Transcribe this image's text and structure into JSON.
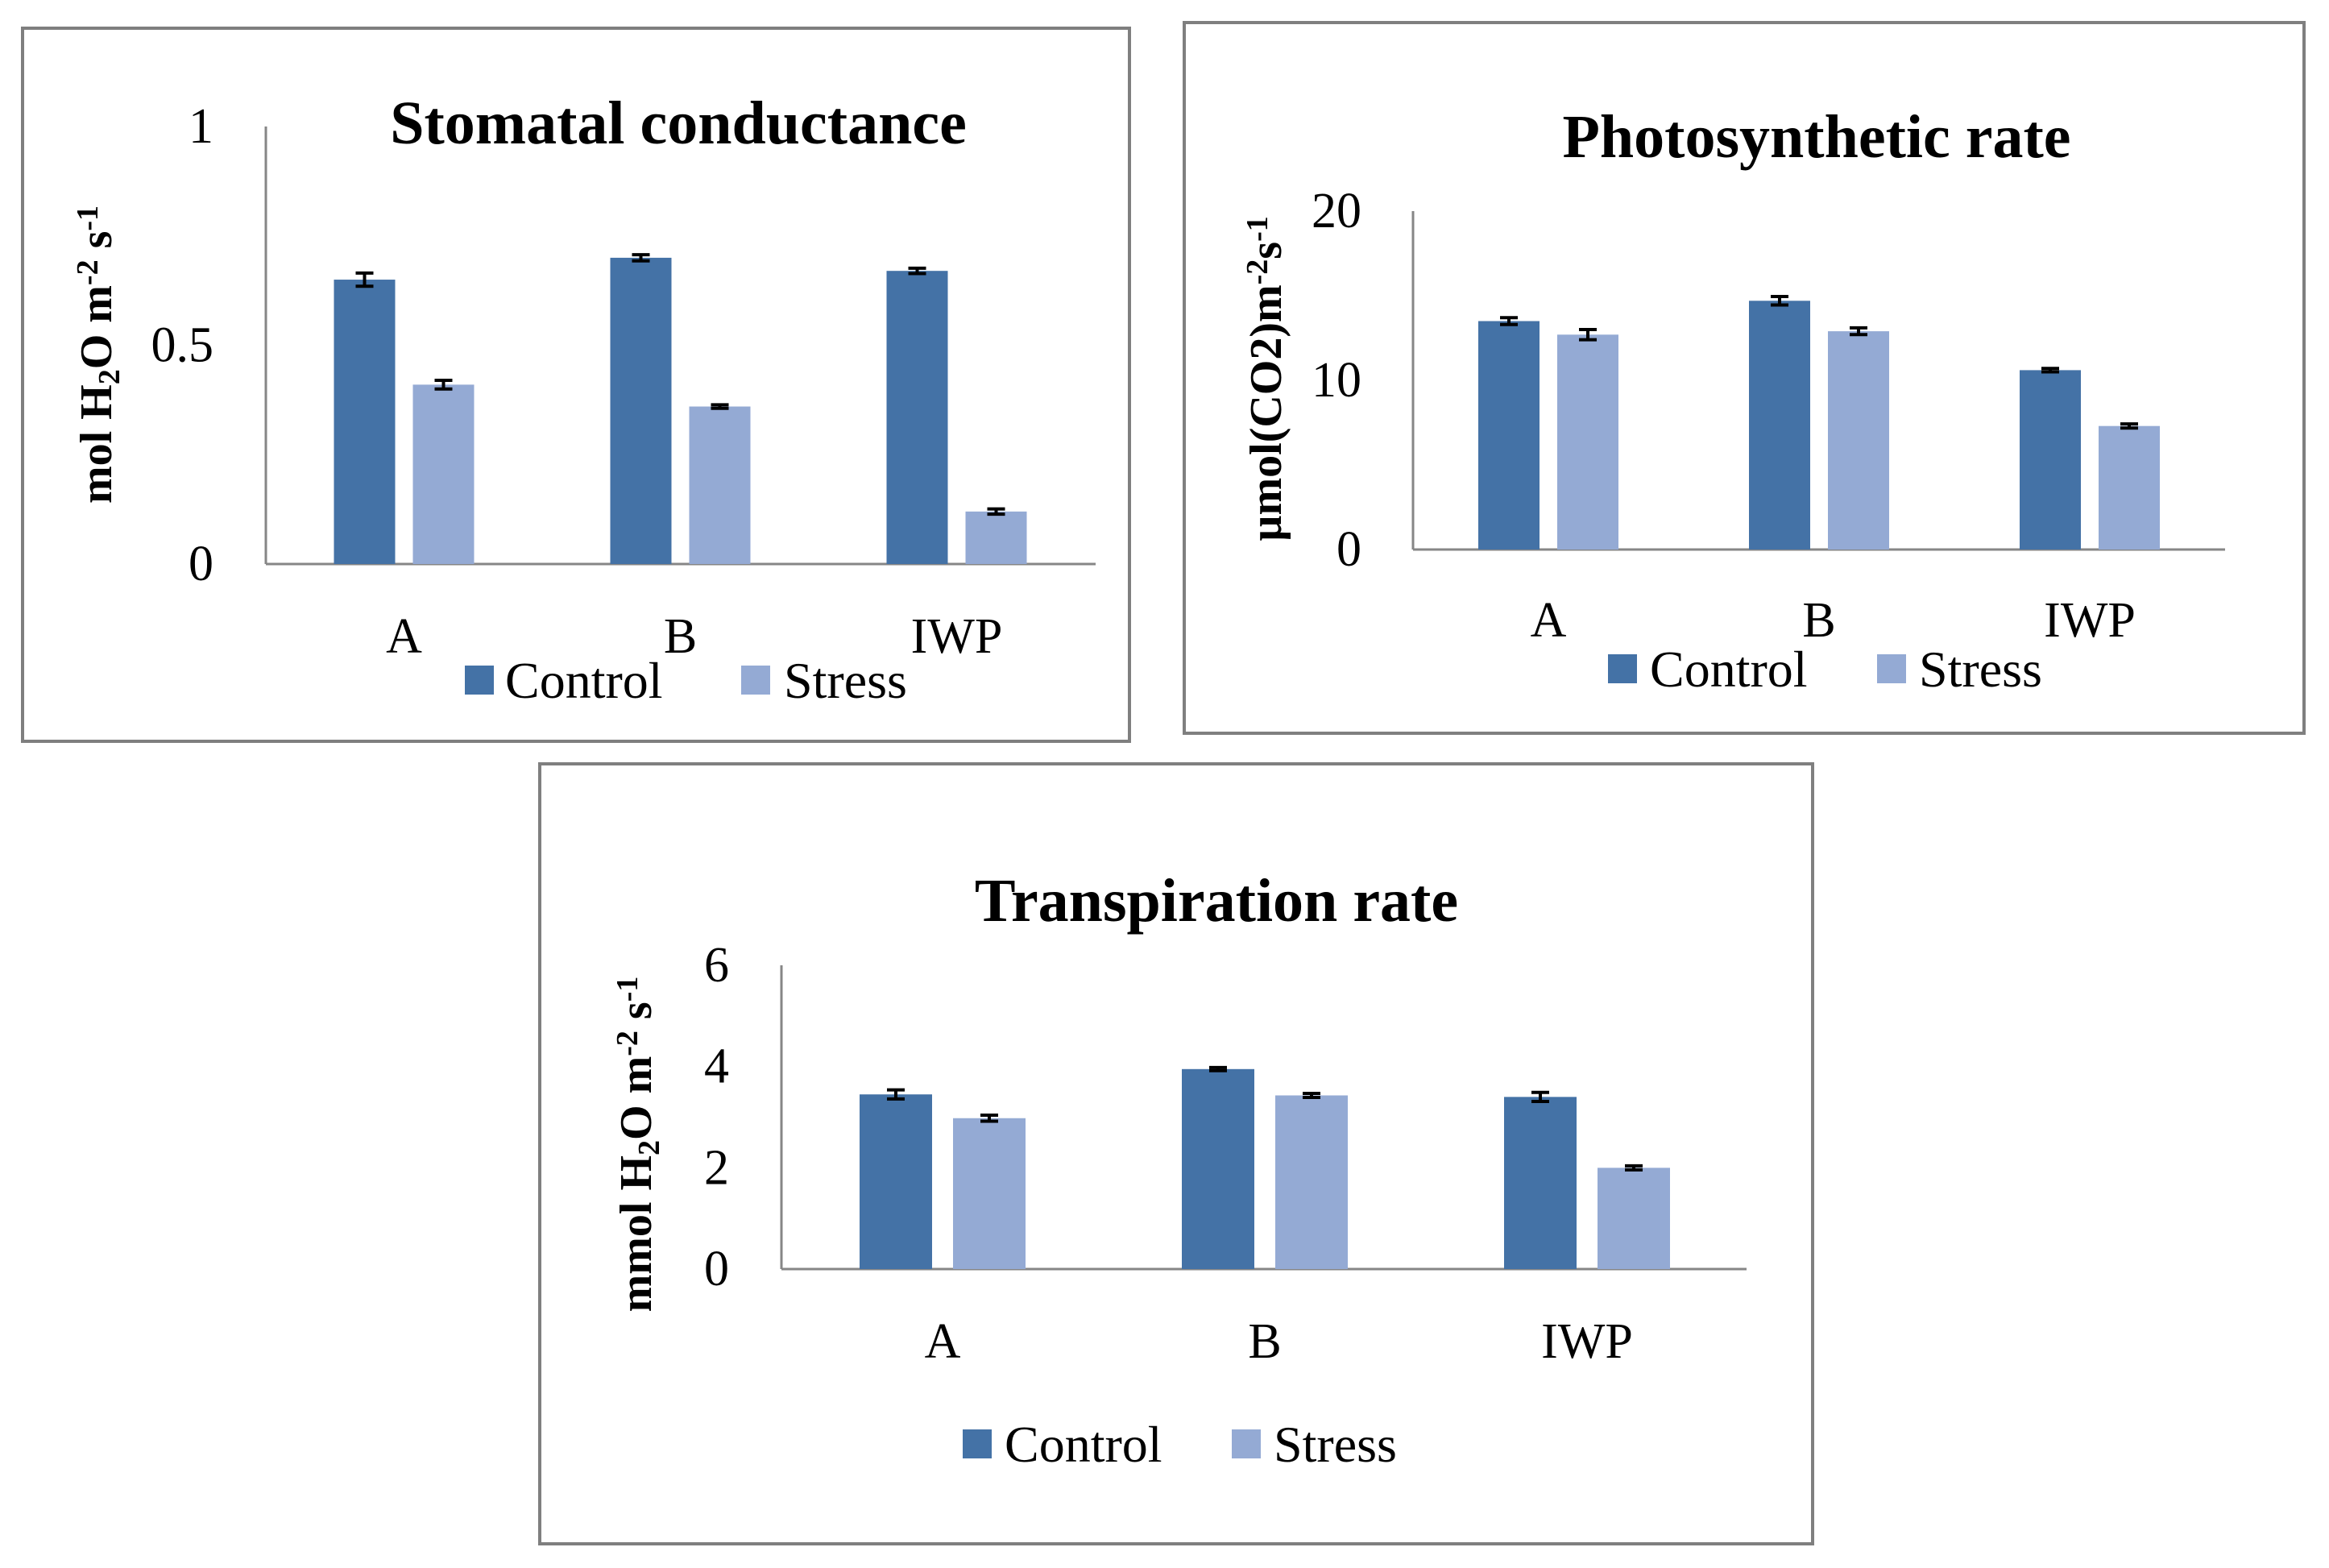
{
  "colors": {
    "control": "#4472a6",
    "stress": "#94aad4"
  },
  "chart_data": [
    {
      "type": "bar",
      "title": "Stomatal conductance",
      "ylabel": "mol H2O m-2 s-1",
      "ylabel_parts": [
        "mol H",
        "2",
        "O m",
        "-2",
        " s",
        "-1"
      ],
      "ylim": [
        0,
        1
      ],
      "yticks": [
        "0",
        "0.5",
        "1"
      ],
      "ytick_values": [
        0,
        0.5,
        1
      ],
      "categories": [
        "A",
        "B",
        "IWP"
      ],
      "series": [
        {
          "name": "Control",
          "values": [
            0.65,
            0.7,
            0.67
          ],
          "errors": [
            0.015,
            0.007,
            0.006
          ]
        },
        {
          "name": "Stress",
          "values": [
            0.41,
            0.36,
            0.12
          ],
          "errors": [
            0.01,
            0.004,
            0.006
          ]
        }
      ],
      "legend_position": "bottom"
    },
    {
      "type": "bar",
      "title": "Photosynthetic rate",
      "ylabel": "µmol(CO2)m-2s-1",
      "ylabel_parts": [
        "µmol(CO2)m",
        "-2",
        "s",
        "-1"
      ],
      "ylim": [
        0,
        20
      ],
      "yticks": [
        "0",
        "10",
        "20"
      ],
      "ytick_values": [
        0,
        10,
        20
      ],
      "categories": [
        "A",
        "B",
        "IWP"
      ],
      "series": [
        {
          "name": "Control",
          "values": [
            13.5,
            14.7,
            10.6
          ],
          "errors": [
            0.2,
            0.25,
            0.1
          ]
        },
        {
          "name": "Stress",
          "values": [
            12.7,
            12.9,
            7.3
          ],
          "errors": [
            0.3,
            0.2,
            0.12
          ]
        }
      ],
      "legend_position": "bottom"
    },
    {
      "type": "bar",
      "title": "Transpiration rate",
      "ylabel": "mmol H2O m-2 s-1",
      "ylabel_parts": [
        "mmol H",
        "2",
        "O m",
        "-2",
        " s",
        "-1"
      ],
      "ylim": [
        0,
        6
      ],
      "yticks": [
        "0",
        "2",
        "4",
        "6"
      ],
      "ytick_values": [
        0,
        2,
        4,
        6
      ],
      "categories": [
        "A",
        "B",
        "IWP"
      ],
      "series": [
        {
          "name": "Control",
          "values": [
            3.45,
            3.95,
            3.4
          ],
          "errors": [
            0.09,
            0.03,
            0.09
          ]
        },
        {
          "name": "Stress",
          "values": [
            2.98,
            3.43,
            2.0
          ],
          "errors": [
            0.06,
            0.04,
            0.04
          ]
        }
      ],
      "legend_position": "bottom"
    }
  ]
}
